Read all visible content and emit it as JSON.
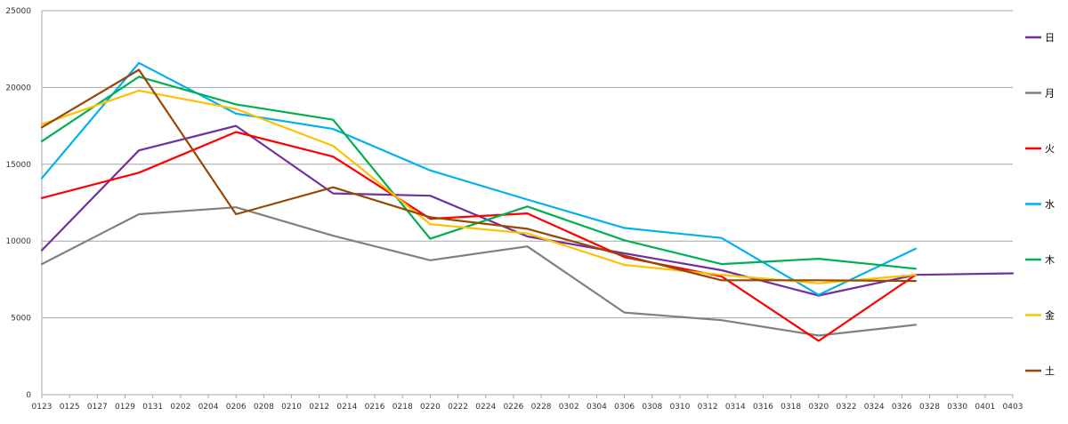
{
  "chart_data": {
    "type": "line",
    "title": "",
    "xlabel": "",
    "ylabel": "",
    "ylim": [
      0,
      25000
    ],
    "y_ticks": [
      0,
      5000,
      10000,
      15000,
      20000,
      25000
    ],
    "grid": "horizontal",
    "legend_position": "right",
    "x_tick_labels": [
      "0123",
      "0125",
      "0127",
      "0129",
      "0131",
      "0202",
      "0204",
      "0206",
      "0208",
      "0210",
      "0212",
      "0214",
      "0216",
      "0218",
      "0220",
      "0222",
      "0224",
      "0226",
      "0228",
      "0302",
      "0304",
      "0306",
      "0308",
      "0310",
      "0312",
      "0314",
      "0316",
      "0318",
      "0320",
      "0322",
      "0324",
      "0326",
      "0328",
      "0330",
      "0401",
      "0403"
    ],
    "series": [
      {
        "name": "日",
        "color": "#7030a0",
        "x": [
          "0123",
          "0130",
          "0206",
          "0213",
          "0220",
          "0227",
          "0306",
          "0313",
          "0320",
          "0327",
          "0403"
        ],
        "values": [
          9400,
          15900,
          17500,
          13100,
          12950,
          10300,
          9200,
          8100,
          6450,
          7800,
          7900
        ]
      },
      {
        "name": "月",
        "color": "#808080",
        "x": [
          "0123",
          "0130",
          "0206",
          "0213",
          "0220",
          "0227",
          "0306",
          "0313",
          "0320",
          "0327"
        ],
        "values": [
          8500,
          11750,
          12200,
          10350,
          8750,
          9650,
          5350,
          4850,
          3850,
          4550
        ]
      },
      {
        "name": "火",
        "color": "#ff0000",
        "x": [
          "0123",
          "0130",
          "0206",
          "0213",
          "0220",
          "0227",
          "0306",
          "0313",
          "0320",
          "0327"
        ],
        "values": [
          12800,
          14450,
          17100,
          15500,
          11450,
          11800,
          8950,
          7700,
          3500,
          7800
        ]
      },
      {
        "name": "水",
        "color": "#00b0f0",
        "x": [
          "0123",
          "0130",
          "0206",
          "0213",
          "0220",
          "0227",
          "0306",
          "0313",
          "0320",
          "0327"
        ],
        "values": [
          14100,
          21600,
          18300,
          17300,
          14600,
          12700,
          10850,
          10200,
          6500,
          9500
        ]
      },
      {
        "name": "木",
        "color": "#00b050",
        "x": [
          "0123",
          "0130",
          "0206",
          "0213",
          "0220",
          "0227",
          "0306",
          "0313",
          "0320",
          "0327"
        ],
        "values": [
          16500,
          20700,
          18900,
          17900,
          10150,
          12250,
          10050,
          8500,
          8850,
          8200
        ]
      },
      {
        "name": "金",
        "color": "#ffc000",
        "x": [
          "0123",
          "0130",
          "0206",
          "0213",
          "0220",
          "0227",
          "0306",
          "0313",
          "0320",
          "0327"
        ],
        "values": [
          17600,
          19800,
          18600,
          16200,
          11100,
          10500,
          8450,
          7800,
          7250,
          7800
        ]
      },
      {
        "name": "土",
        "color": "#974706",
        "x": [
          "0123",
          "0130",
          "0206",
          "0213",
          "0220",
          "0227",
          "0306",
          "0313",
          "0320",
          "0327"
        ],
        "values": [
          17400,
          21150,
          11750,
          13500,
          11550,
          10800,
          9050,
          7450,
          7450,
          7400
        ]
      }
    ]
  }
}
